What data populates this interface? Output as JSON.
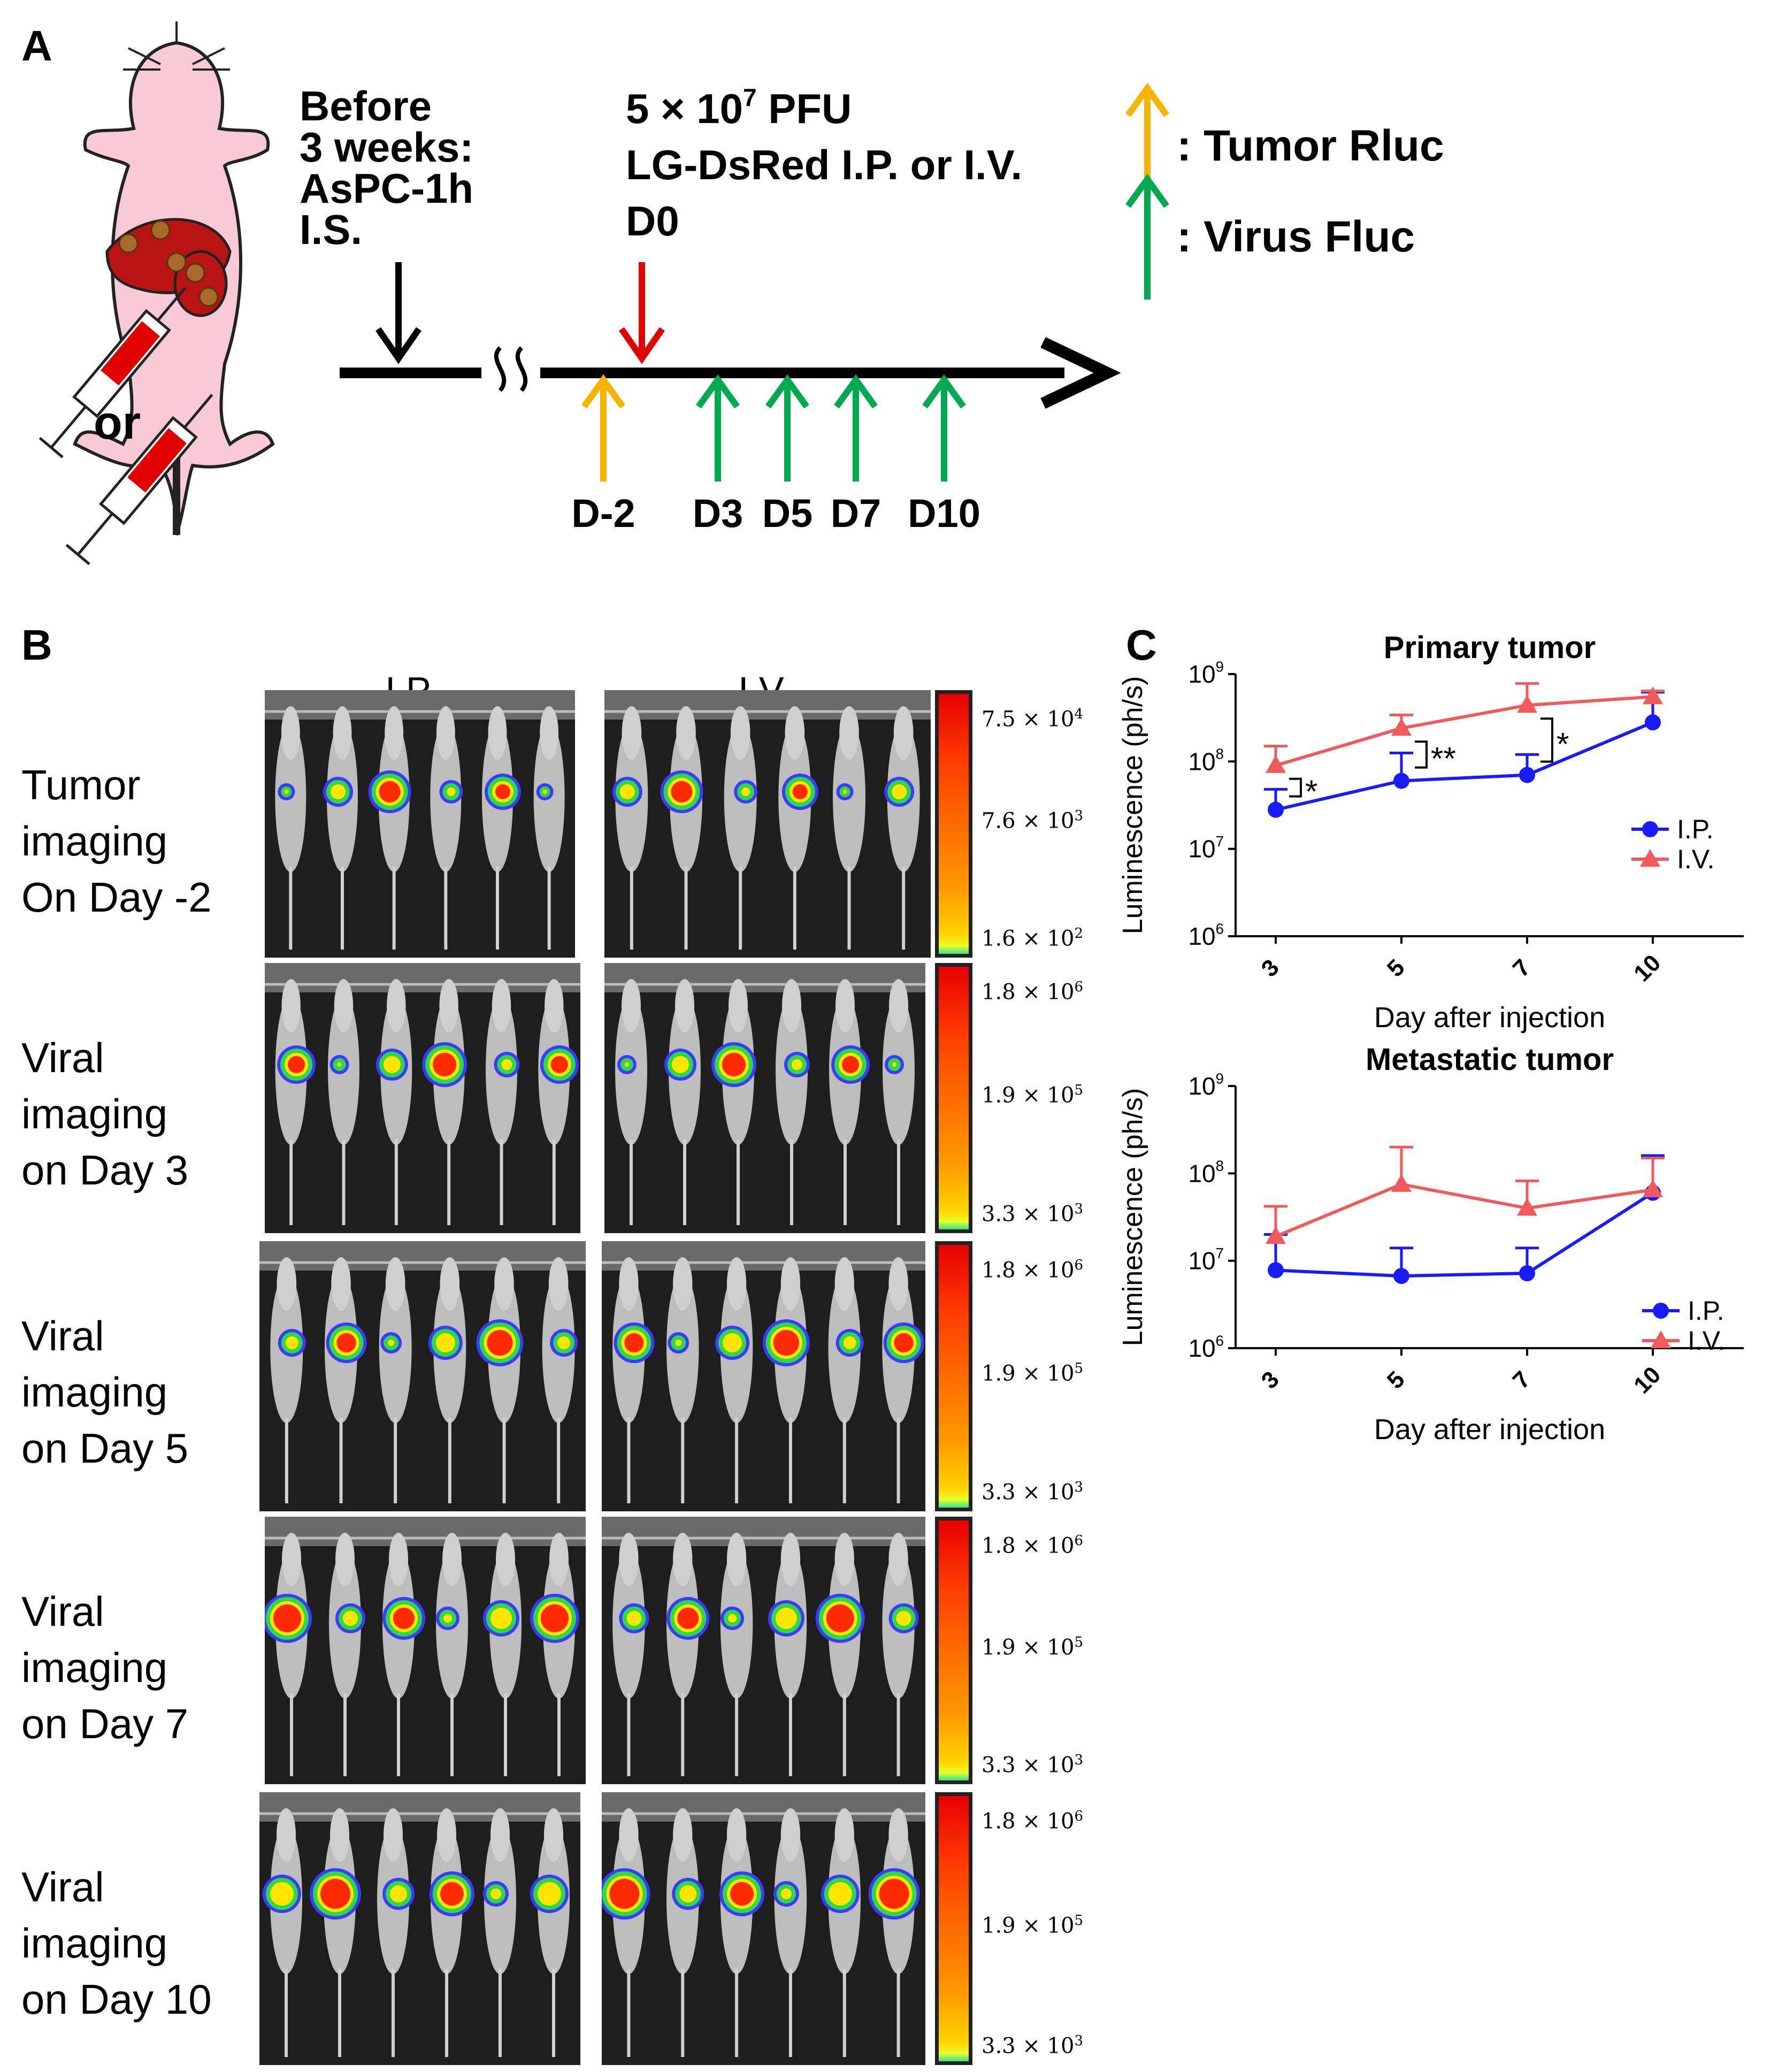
{
  "panel_letters": {
    "a": "A",
    "b": "B",
    "c": "C"
  },
  "panel_a": {
    "before_lines": [
      "Before",
      "3 weeks:",
      "AsPC-1h",
      "I.S."
    ],
    "or_text": "or",
    "injection_line1": "5 × 10",
    "injection_exp": "7",
    "injection_line1_suffix": " PFU",
    "injection_line2": "LG-DsRed I.P. or I.V.",
    "injection_line3": "D0",
    "timepoints": [
      "D-2",
      "D3",
      "D5",
      "D7",
      "D10"
    ],
    "legend": [
      {
        "label": ": Tumor Rluc",
        "color": "#f5b400"
      },
      {
        "label": ": Virus Fluc",
        "color": "#00a84f"
      }
    ]
  },
  "panel_b": {
    "column_headers": [
      "I.P.",
      "I.V."
    ],
    "rows": [
      {
        "label_lines": [
          "Tumor",
          "imaging",
          "On Day -2"
        ],
        "mice_ip": 6,
        "mice_iv": 6,
        "scale": [
          {
            "m": "7.5",
            "e": "4"
          },
          {
            "m": "7.6",
            "e": "3"
          },
          {
            "m": "1.6",
            "e": "2"
          }
        ]
      },
      {
        "label_lines": [
          "Viral",
          "imaging",
          "on Day 3"
        ],
        "mice_ip": 6,
        "mice_iv": 6,
        "scale": [
          {
            "m": "1.8",
            "e": "6"
          },
          {
            "m": "1.9",
            "e": "5"
          },
          {
            "m": "3.3",
            "e": "3"
          }
        ]
      },
      {
        "label_lines": [
          "Viral",
          "imaging",
          "on Day 5"
        ],
        "mice_ip": 6,
        "mice_iv": 6,
        "scale": [
          {
            "m": "1.8",
            "e": "6"
          },
          {
            "m": "1.9",
            "e": "5"
          },
          {
            "m": "3.3",
            "e": "3"
          }
        ]
      },
      {
        "label_lines": [
          "Viral",
          "imaging",
          "on Day 7"
        ],
        "mice_ip": 6,
        "mice_iv": 6,
        "scale": [
          {
            "m": "1.8",
            "e": "6"
          },
          {
            "m": "1.9",
            "e": "5"
          },
          {
            "m": "3.3",
            "e": "3"
          }
        ]
      },
      {
        "label_lines": [
          "Viral",
          "imaging",
          "on Day 10"
        ],
        "mice_ip": 6,
        "mice_iv": 6,
        "scale": [
          {
            "m": "1.8",
            "e": "6"
          },
          {
            "m": "1.9",
            "e": "5"
          },
          {
            "m": "3.3",
            "e": "3"
          }
        ]
      }
    ],
    "scale_times": " × 10"
  },
  "chart_data": [
    {
      "type": "line",
      "title": "Primary tumor",
      "xlabel": "Day after injection",
      "ylabel": "Luminescence (ph/s)",
      "yscale": "log",
      "ylim": [
        1000000,
        1000000000
      ],
      "yticks": [
        {
          "m": "10",
          "e": "6"
        },
        {
          "m": "10",
          "e": "7"
        },
        {
          "m": "10",
          "e": "8"
        },
        {
          "m": "10",
          "e": "9"
        }
      ],
      "categories": [
        "3",
        "5",
        "7",
        "10"
      ],
      "series": [
        {
          "name": "I.P.",
          "color": "#1a1aff",
          "marker": "circle",
          "values": [
            28000000,
            60000000,
            70000000,
            280000000
          ],
          "error_upper": [
            48000000,
            125000000,
            120000000,
            620000000
          ]
        },
        {
          "name": "I.V.",
          "color": "#f05a5a",
          "marker": "triangle",
          "values": [
            90000000,
            240000000,
            440000000,
            550000000
          ],
          "error_upper": [
            150000000,
            340000000,
            780000000,
            640000000
          ]
        }
      ],
      "significance": [
        {
          "at": "3",
          "label": "*"
        },
        {
          "at": "5",
          "label": "**"
        },
        {
          "at": "7",
          "label": "*"
        }
      ],
      "legend_position": "right"
    },
    {
      "type": "line",
      "title": "Metastatic tumor",
      "xlabel": "Day after injection",
      "ylabel": "Luminescence (ph/s)",
      "yscale": "log",
      "ylim": [
        1000000,
        1000000000
      ],
      "yticks": [
        {
          "m": "10",
          "e": "6"
        },
        {
          "m": "10",
          "e": "7"
        },
        {
          "m": "10",
          "e": "8"
        },
        {
          "m": "10",
          "e": "9"
        }
      ],
      "categories": [
        "3",
        "5",
        "7",
        "10"
      ],
      "series": [
        {
          "name": "I.P.",
          "color": "#1a1aff",
          "marker": "circle",
          "values": [
            7800000,
            6700000,
            7200000,
            60000000
          ],
          "error_upper": [
            20000000,
            14000000,
            14000000,
            160000000
          ]
        },
        {
          "name": "I.V.",
          "color": "#f05a5a",
          "marker": "triangle",
          "values": [
            19000000,
            75000000,
            40000000,
            65000000
          ],
          "error_upper": [
            42000000,
            200000000,
            82000000,
            150000000
          ]
        }
      ],
      "significance": [],
      "legend_position": "bottom-right"
    }
  ]
}
